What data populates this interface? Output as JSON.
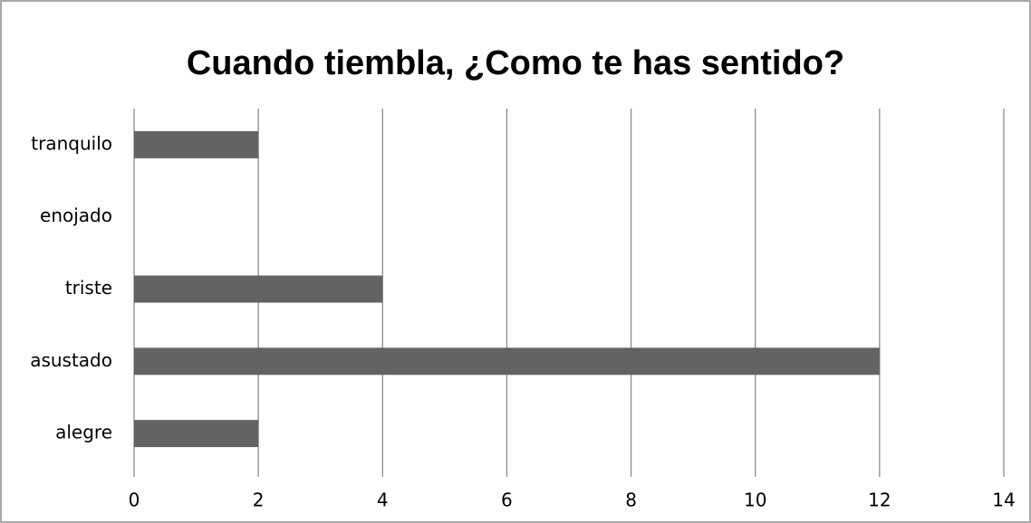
{
  "chart_data": {
    "type": "hbar",
    "title": "Cuando tiembla, ¿Como te has sentido?",
    "categories": [
      "alegre",
      "asustado",
      "triste",
      "enojado",
      "tranquilo"
    ],
    "values": [
      2,
      12,
      4,
      0,
      2
    ],
    "color": "#636363",
    "xlim": [
      0,
      14
    ],
    "xticks": [
      0,
      2,
      4,
      6,
      8,
      10,
      12,
      14
    ],
    "grid": true
  }
}
